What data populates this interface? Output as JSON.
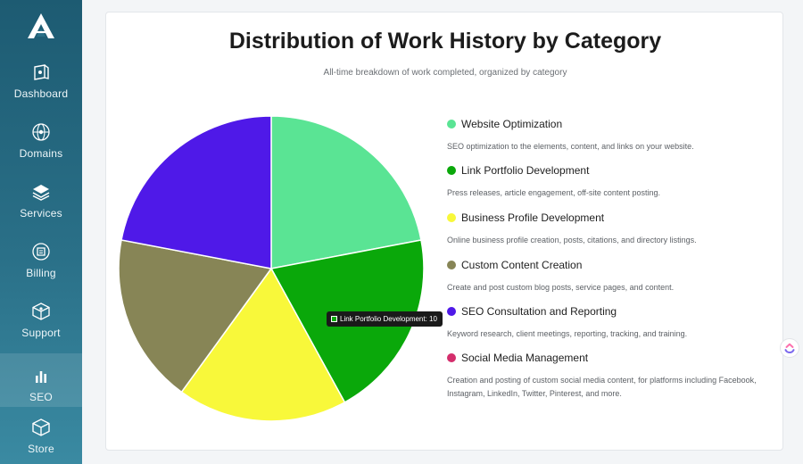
{
  "sidebar": {
    "logo": "brand-logo",
    "items": [
      {
        "label": "Dashboard",
        "icon": "dashboard-icon"
      },
      {
        "label": "Domains",
        "icon": "globe-icon"
      },
      {
        "label": "Services",
        "icon": "layers-icon"
      },
      {
        "label": "Billing",
        "icon": "wallet-icon"
      },
      {
        "label": "Support",
        "icon": "support-box-icon"
      },
      {
        "label": "SEO",
        "icon": "bar-chart-icon",
        "active": true
      },
      {
        "label": "Store",
        "icon": "cube-icon"
      }
    ]
  },
  "chart_data": {
    "type": "pie",
    "title": "Distribution of Work History by Category",
    "subtitle": "All-time breakdown of work completed, organized by category",
    "categories": [
      "Website Optimization",
      "Link Portfolio Development",
      "Business Profile Development",
      "Custom Content Creation",
      "SEO Consultation and Reporting",
      "Social Media Management"
    ],
    "values": [
      11,
      10,
      9,
      9,
      11,
      0
    ],
    "colors": [
      "#5ae494",
      "#0aa80a",
      "#f8f83a",
      "#878556",
      "#4f19e8",
      "#d42e6c"
    ],
    "descriptions": [
      "SEO optimization to the elements, content, and links on your website.",
      "Press releases, article engagement, off-site content posting.",
      "Online business profile creation, posts, citations, and directory listings.",
      "Create and post custom blog posts, service pages, and content.",
      "Keyword research, client meetings, reporting, tracking, and training.",
      "Creation and posting of custom social media content, for platforms including Facebook, Instagram, LinkedIn, Twitter, Pinterest, and more."
    ],
    "legend_position": "right",
    "tooltip": "Link Portfolio Development: 10"
  }
}
